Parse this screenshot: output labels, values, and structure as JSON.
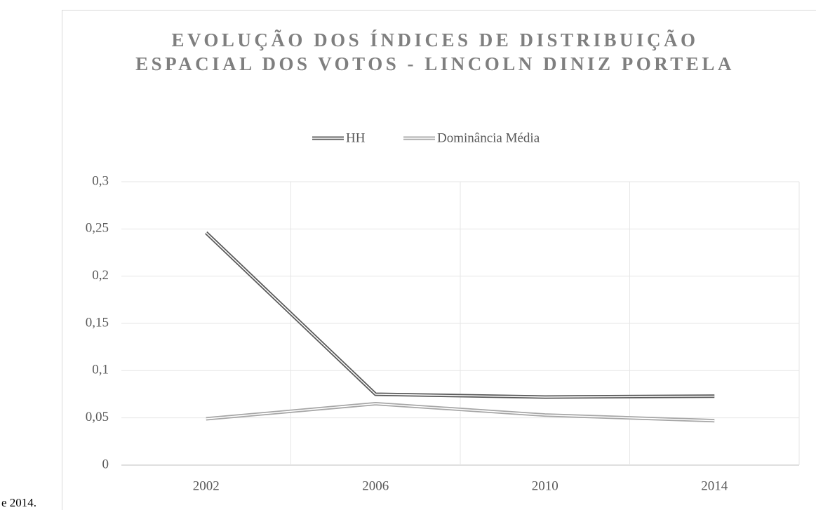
{
  "text_fragment": "e 2014.",
  "chart_data": {
    "type": "line",
    "title": "EVOLUÇÃO DOS ÍNDICES DE DISTRIBUIÇÃO ESPACIAL DOS VOTOS -  LINCOLN DINIZ PORTELA",
    "categories": [
      "2002",
      "2006",
      "2010",
      "2014"
    ],
    "series": [
      {
        "name": "HH",
        "color": "#595959",
        "values": [
          0.246,
          0.075,
          0.072,
          0.073
        ]
      },
      {
        "name": "Dominância Média",
        "color": "#a6a6a6",
        "values": [
          0.049,
          0.065,
          0.053,
          0.047
        ]
      }
    ],
    "ylim": [
      0,
      0.3
    ],
    "yticks": [
      0,
      {
        "value": 0.05,
        "label": "0,05"
      },
      {
        "value": 0.1,
        "label": "0,1"
      },
      {
        "value": 0.15,
        "label": "0,15"
      },
      {
        "value": 0.2,
        "label": "0,2"
      },
      {
        "value": 0.25,
        "label": "0,25"
      },
      {
        "value": 0.3,
        "label": "0,3"
      }
    ],
    "grid": true,
    "legend": "top"
  }
}
